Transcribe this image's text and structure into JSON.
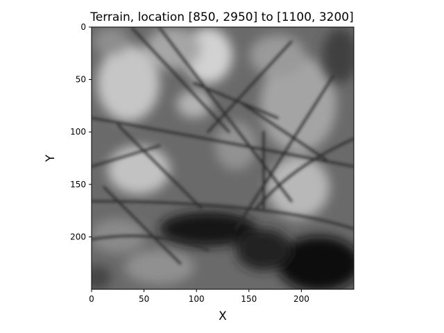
{
  "chart_data": {
    "type": "heatmap",
    "title": "Terrain, location [850, 2950] to [1100, 3200]",
    "xlabel": "X",
    "ylabel": "Y",
    "xlim": [
      0,
      250
    ],
    "ylim": [
      250,
      0
    ],
    "x_ticks": [
      0,
      50,
      100,
      150,
      200
    ],
    "y_ticks": [
      0,
      50,
      100,
      150,
      200
    ],
    "colormap": "gray",
    "grid": false,
    "colors": {
      "axis": "#000000",
      "background": "#ffffff"
    }
  }
}
